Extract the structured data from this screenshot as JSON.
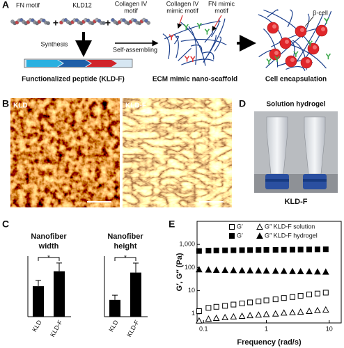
{
  "panel_labels": [
    "A",
    "B",
    "C",
    "D",
    "E"
  ],
  "panel_a": {
    "fn_motif": "FN motif",
    "kld12": "KLD12",
    "collagen_motif": [
      "Collagen IV",
      "motif"
    ],
    "plus": "+",
    "synthesis": "Synthesis",
    "peptide": "Functionalized peptide (KLD-F)",
    "self_assembling": "Self-assembling",
    "collagen_mimic": [
      "Collagen IV",
      "mimic motif"
    ],
    "fn_mimic": [
      "FN mimic",
      "motif"
    ],
    "scaffold": "ECM mimic nano-scaffold",
    "beta_cell": "β-cell",
    "encapsulation": "Cell encapsulation"
  },
  "panel_b": {
    "images": [
      "KLD",
      "KLD-F"
    ]
  },
  "panel_d": {
    "title": "Solution hydrogel",
    "caption": "KLD-F"
  },
  "chart_data": [
    {
      "type": "bar",
      "title": [
        "Nanofiber",
        "width"
      ],
      "categories": [
        "KLD",
        "KLD-F"
      ],
      "values": [
        37,
        55
      ],
      "errors": [
        7,
        10
      ],
      "ylim": [
        0,
        70
      ],
      "color": "#000000",
      "significance": "*"
    },
    {
      "type": "bar",
      "title": [
        "Nanofiber",
        "height"
      ],
      "categories": [
        "KLD",
        "KLD-F"
      ],
      "values": [
        3.2,
        8.4
      ],
      "errors": [
        0.9,
        1.8
      ],
      "ylim": [
        0,
        11
      ],
      "color": "#000000",
      "significance": "*"
    },
    {
      "type": "scatter",
      "xlabel": "Frequency (rad/s)",
      "ylabel": "G′, G″ (Pa)",
      "xscale": "log",
      "yscale": "log",
      "xlim": [
        0.079,
        15.5
      ],
      "ylim": [
        0.4,
        10000
      ],
      "xticks": [
        0.1,
        1,
        10
      ],
      "yticks": [
        1,
        10,
        100,
        {
          "value": 1000,
          "label": "1,000"
        }
      ],
      "legend": "top",
      "x": [
        0.085,
        0.12,
        0.16,
        0.22,
        0.3,
        0.41,
        0.55,
        0.75,
        1.0,
        1.4,
        1.9,
        2.6,
        3.5,
        4.8,
        6.5,
        8.8
      ],
      "series": [
        {
          "name": "G′",
          "color": "#000000",
          "marker": "square",
          "filled": false,
          "values": [
            1.3,
            1.8,
            2.0,
            2.2,
            2.5,
            2.8,
            3.1,
            3.4,
            3.8,
            4.2,
            4.8,
            5.3,
            6.0,
            6.8,
            7.5,
            8.2
          ]
        },
        {
          "name": "G″ KLD-F solution",
          "color": "#000000",
          "marker": "triangle",
          "filled": false,
          "values": [
            0.5,
            0.6,
            0.65,
            0.7,
            0.75,
            0.8,
            0.85,
            0.9,
            0.95,
            1.0,
            1.1,
            1.15,
            1.2,
            1.3,
            1.4,
            1.5
          ]
        },
        {
          "name": "G′",
          "color": "#000000",
          "marker": "square",
          "filled": true,
          "values": [
            520,
            540,
            550,
            555,
            560,
            565,
            570,
            575,
            580,
            585,
            590,
            595,
            600,
            605,
            610,
            615
          ]
        },
        {
          "name": "G″ KLD-F hydrogel",
          "color": "#000000",
          "marker": "triangle",
          "filled": true,
          "values": [
            82,
            80,
            78,
            77,
            76,
            75,
            74,
            73,
            72,
            71,
            70,
            69,
            68,
            67,
            66,
            65
          ]
        }
      ]
    }
  ]
}
